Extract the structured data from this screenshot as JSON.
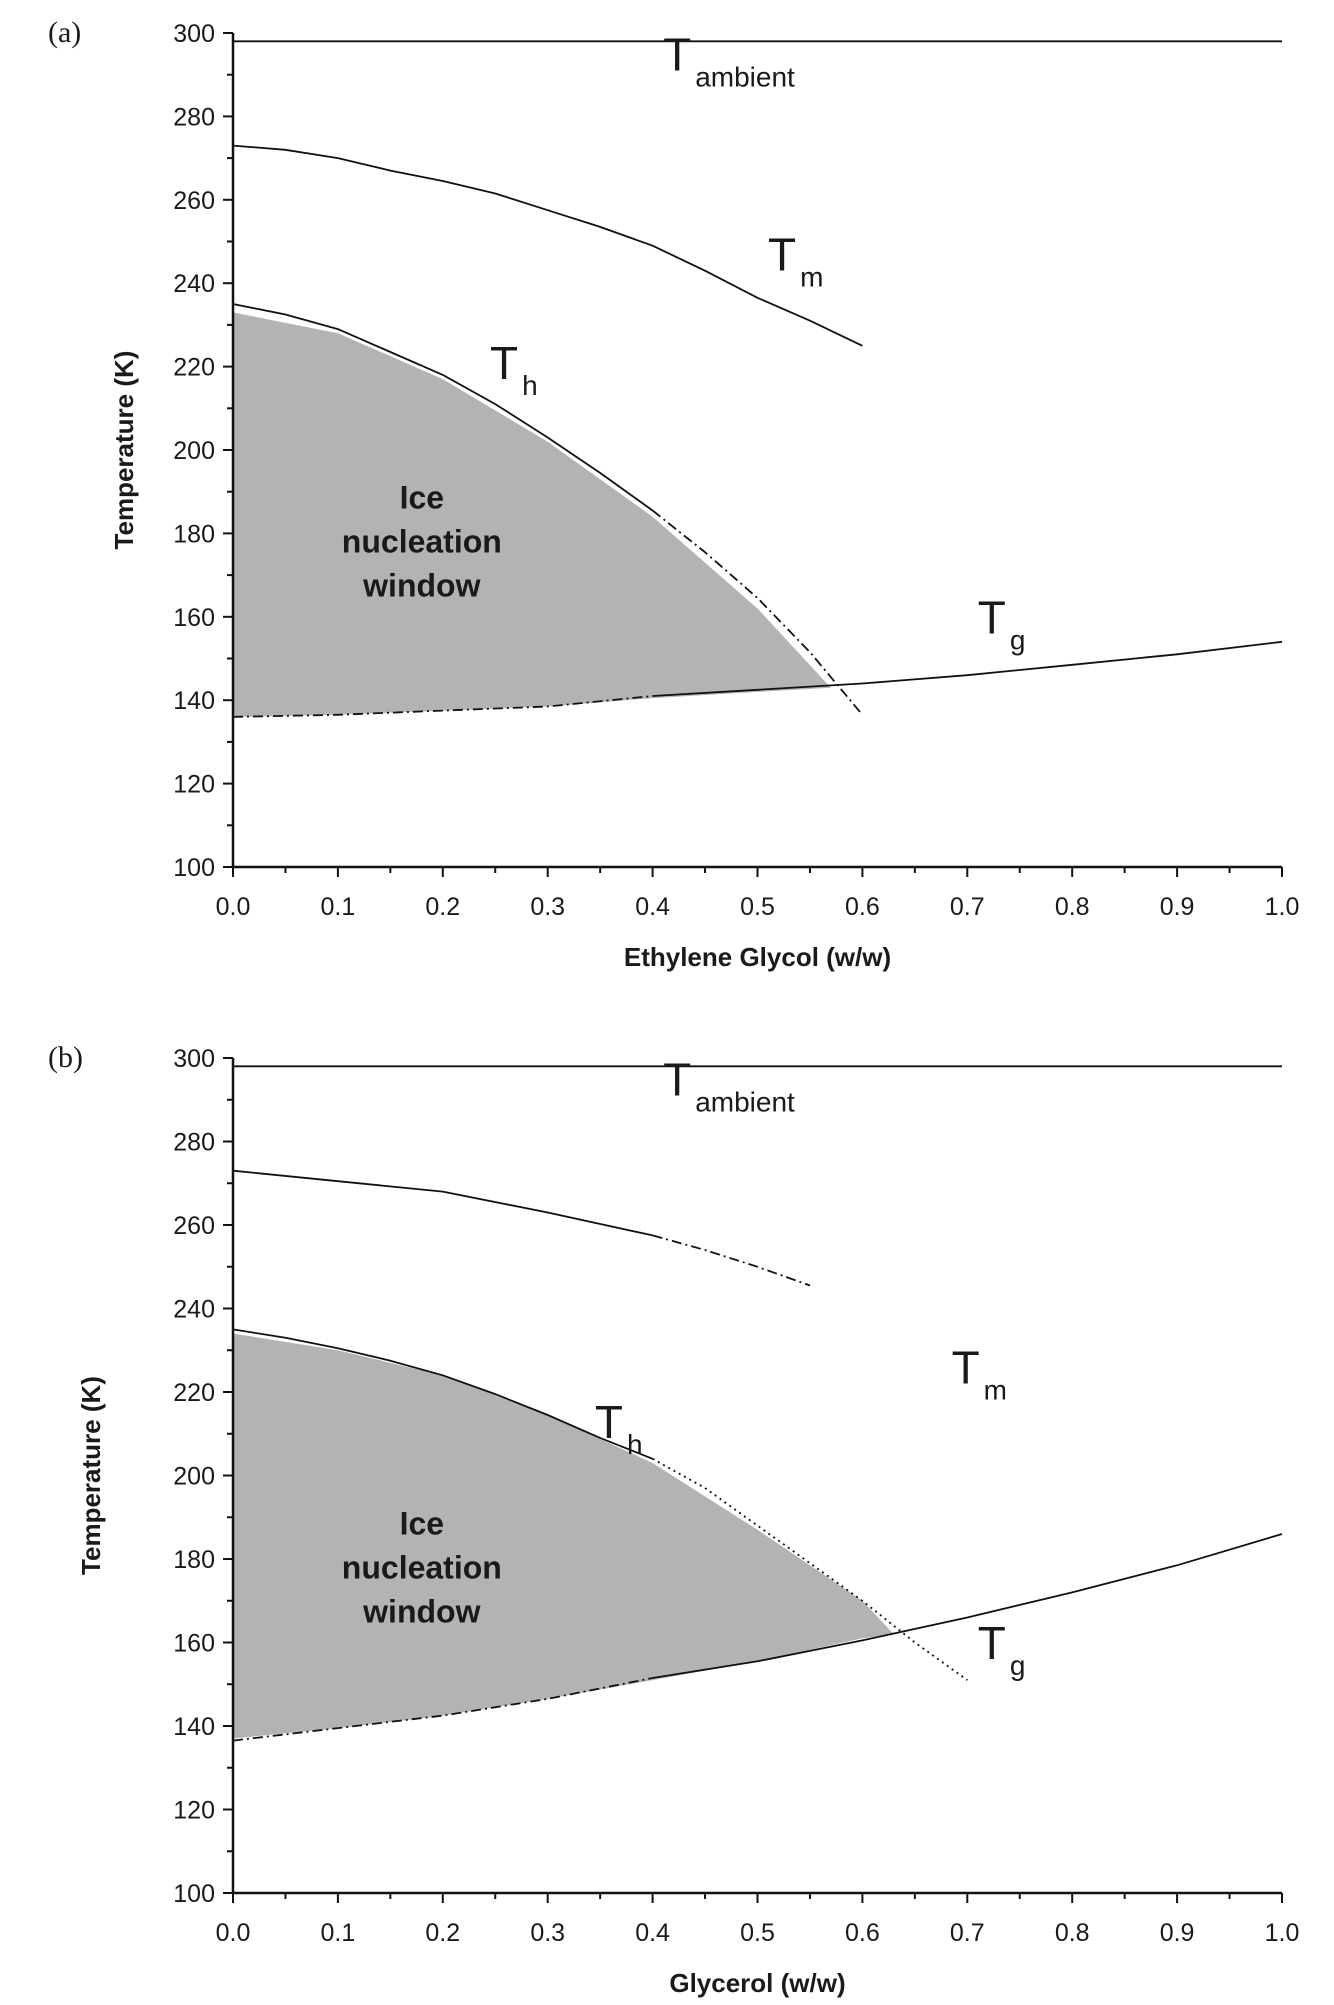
{
  "chart_data": [
    {
      "type": "line",
      "panel_label": "(a)",
      "xlabel": "Ethylene Glycol (w/w)",
      "ylabel": "Temperature (K)",
      "xlim": [
        0,
        1
      ],
      "ylim": [
        100,
        300
      ],
      "x_ticks": [
        "0.0",
        "0.1",
        "0.2",
        "0.3",
        "0.4",
        "0.5",
        "0.6",
        "0.7",
        "0.8",
        "0.9",
        "1.0"
      ],
      "y_ticks": [
        "100",
        "120",
        "140",
        "160",
        "180",
        "200",
        "220",
        "240",
        "260",
        "280",
        "300"
      ],
      "shaded_region": {
        "label_lines": [
          "Ice",
          "nucleation",
          "window"
        ],
        "label_at": [
          0.18,
          178
        ],
        "upper": [
          [
            0,
            233
          ],
          [
            0.1,
            228
          ],
          [
            0.2,
            217
          ],
          [
            0.3,
            202
          ],
          [
            0.4,
            184
          ],
          [
            0.5,
            162
          ],
          [
            0.57,
            143
          ]
        ],
        "lower": [
          [
            0.57,
            143
          ],
          [
            0.5,
            142
          ],
          [
            0.4,
            140.5
          ],
          [
            0.3,
            138.5
          ],
          [
            0.2,
            137.5
          ],
          [
            0.1,
            136.5
          ],
          [
            0,
            136
          ]
        ]
      },
      "series": [
        {
          "name": "T_ambient",
          "label_main": "T",
          "label_sub": "ambient",
          "label_at": [
            0.41,
            291
          ],
          "dash": "",
          "points": [
            [
              0,
              298
            ],
            [
              1,
              298
            ]
          ]
        },
        {
          "name": "T_m",
          "label_main": "T",
          "label_sub": "m",
          "label_at": [
            0.51,
            243
          ],
          "dash": "",
          "points": [
            [
              0,
              273
            ],
            [
              0.05,
              272
            ],
            [
              0.1,
              270
            ],
            [
              0.15,
              267
            ],
            [
              0.2,
              264.5
            ],
            [
              0.25,
              261.5
            ],
            [
              0.3,
              257.5
            ],
            [
              0.35,
              253.5
            ],
            [
              0.4,
              249
            ],
            [
              0.45,
              243
            ],
            [
              0.5,
              236.5
            ],
            [
              0.55,
              231
            ],
            [
              0.6,
              225
            ]
          ]
        },
        {
          "name": "T_h",
          "label_main": "T",
          "label_sub": "h",
          "label_at": [
            0.245,
            217
          ],
          "dash": "",
          "points": [
            [
              0,
              235
            ],
            [
              0.05,
              232.5
            ],
            [
              0.1,
              229
            ],
            [
              0.15,
              223.5
            ],
            [
              0.2,
              218
            ],
            [
              0.25,
              211
            ],
            [
              0.3,
              203
            ],
            [
              0.35,
              194.5
            ],
            [
              0.4,
              185.5
            ]
          ]
        },
        {
          "name": "T_h_extrapolated",
          "label_main": "",
          "label_sub": "",
          "dash": "10 4 2 4",
          "points": [
            [
              0.4,
              185.5
            ],
            [
              0.45,
              175.5
            ],
            [
              0.5,
              164.5
            ],
            [
              0.55,
              151.5
            ],
            [
              0.6,
              136.5
            ]
          ]
        },
        {
          "name": "T_g",
          "label_main": "T",
          "label_sub": "g",
          "label_at": [
            0.71,
            156
          ],
          "dash": "",
          "points": [
            [
              0.4,
              141
            ],
            [
              0.5,
              142.5
            ],
            [
              0.6,
              144
            ],
            [
              0.7,
              146
            ],
            [
              0.8,
              148.5
            ],
            [
              0.9,
              151
            ],
            [
              1.0,
              154
            ]
          ]
        },
        {
          "name": "T_g_lower",
          "label_main": "",
          "label_sub": "",
          "dash": "10 4 2 4",
          "points": [
            [
              0,
              136
            ],
            [
              0.1,
              136.5
            ],
            [
              0.2,
              137.5
            ],
            [
              0.3,
              138.5
            ],
            [
              0.4,
              141
            ]
          ]
        }
      ]
    },
    {
      "type": "line",
      "panel_label": "(b)",
      "xlabel": "Glycerol (w/w)",
      "ylabel": "Temperature (K)",
      "xlim": [
        0,
        1
      ],
      "ylim": [
        100,
        300
      ],
      "x_ticks": [
        "0.0",
        "0.1",
        "0.2",
        "0.3",
        "0.4",
        "0.5",
        "0.6",
        "0.7",
        "0.8",
        "0.9",
        "1.0"
      ],
      "y_ticks": [
        "100",
        "120",
        "140",
        "160",
        "180",
        "200",
        "220",
        "240",
        "260",
        "280",
        "300"
      ],
      "shaded_region": {
        "label_lines": [
          "Ice",
          "nucleation",
          "window"
        ],
        "label_at": [
          0.18,
          178
        ],
        "upper": [
          [
            0,
            234
          ],
          [
            0.1,
            230
          ],
          [
            0.2,
            224
          ],
          [
            0.3,
            214.5
          ],
          [
            0.4,
            203
          ],
          [
            0.5,
            187
          ],
          [
            0.6,
            170
          ],
          [
            0.63,
            162
          ]
        ],
        "lower": [
          [
            0.63,
            162
          ],
          [
            0.6,
            161
          ],
          [
            0.5,
            155.5
          ],
          [
            0.4,
            151
          ],
          [
            0.3,
            146.5
          ],
          [
            0.2,
            142.5
          ],
          [
            0.1,
            139.5
          ],
          [
            0,
            137
          ]
        ]
      },
      "series": [
        {
          "name": "T_ambient",
          "label_main": "T",
          "label_sub": "ambient",
          "label_at": [
            0.41,
            291
          ],
          "dash": "",
          "points": [
            [
              0,
              298
            ],
            [
              1,
              298
            ]
          ]
        },
        {
          "name": "T_m",
          "label_main": "T",
          "label_sub": "m",
          "label_at": [
            0.685,
            222
          ],
          "dash": "",
          "points": [
            [
              0,
              273
            ],
            [
              0.1,
              270.5
            ],
            [
              0.2,
              268
            ],
            [
              0.3,
              263
            ],
            [
              0.4,
              257.5
            ]
          ]
        },
        {
          "name": "T_m_extrapolated",
          "label_main": "",
          "label_sub": "",
          "dash": "10 4 2 4",
          "points": [
            [
              0.4,
              257.5
            ],
            [
              0.45,
              254
            ],
            [
              0.5,
              250
            ],
            [
              0.55,
              245.5
            ]
          ]
        },
        {
          "name": "T_h",
          "label_main": "T",
          "label_sub": "h",
          "label_at": [
            0.345,
            209
          ],
          "dash": "",
          "points": [
            [
              0,
              235
            ],
            [
              0.05,
              233
            ],
            [
              0.1,
              230.5
            ],
            [
              0.15,
              227.5
            ],
            [
              0.2,
              224
            ],
            [
              0.25,
              219.5
            ],
            [
              0.3,
              214.5
            ],
            [
              0.35,
              209
            ],
            [
              0.4,
              204
            ]
          ]
        },
        {
          "name": "T_h_extrapolated",
          "label_main": "",
          "label_sub": "",
          "dash": "2 4",
          "points": [
            [
              0.4,
              204
            ],
            [
              0.45,
              197
            ],
            [
              0.5,
              188
            ],
            [
              0.55,
              179
            ],
            [
              0.6,
              170
            ],
            [
              0.65,
              160
            ],
            [
              0.7,
              151
            ]
          ]
        },
        {
          "name": "T_g",
          "label_main": "T",
          "label_sub": "g",
          "label_at": [
            0.71,
            156
          ],
          "dash": "",
          "points": [
            [
              0.4,
              151.5
            ],
            [
              0.5,
              155.5
            ],
            [
              0.6,
              160.5
            ],
            [
              0.7,
              166
            ],
            [
              0.8,
              172
            ],
            [
              0.9,
              178.5
            ],
            [
              1.0,
              186
            ]
          ]
        },
        {
          "name": "T_g_lower",
          "label_main": "",
          "label_sub": "",
          "dash": "10 4 2 4",
          "points": [
            [
              0,
              136.5
            ],
            [
              0.1,
              139.5
            ],
            [
              0.2,
              142.5
            ],
            [
              0.3,
              146.5
            ],
            [
              0.4,
              151.5
            ]
          ]
        }
      ]
    }
  ]
}
